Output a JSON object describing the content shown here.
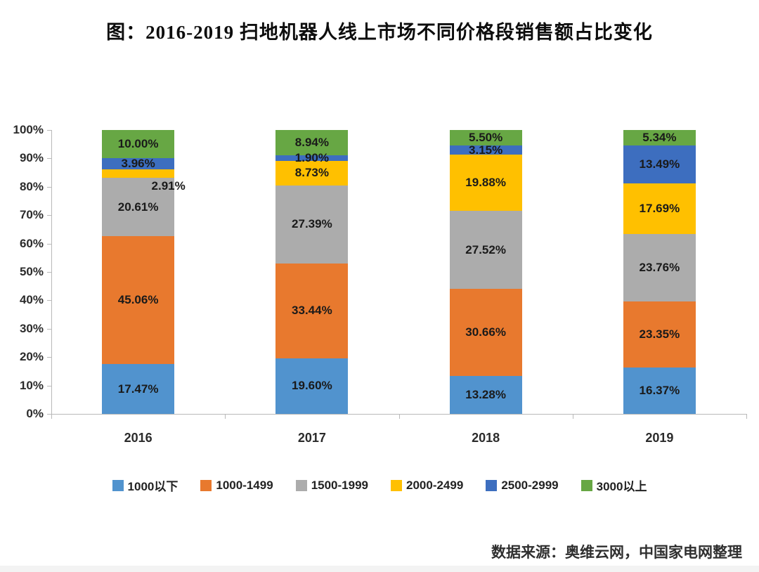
{
  "title": "图：2016-2019 扫地机器人线上市场不同价格段销售额占比变化",
  "source": "数据来源：奥维云网，中国家电网整理",
  "chart_data": {
    "type": "bar",
    "stacked": true,
    "title": "图：2016-2019 扫地机器人线上市场不同价格段销售额占比变化",
    "categories": [
      "2016",
      "2017",
      "2018",
      "2019"
    ],
    "series": [
      {
        "name": "1000以下",
        "color": "#5193CE",
        "values": [
          17.47,
          19.6,
          13.28,
          16.37
        ]
      },
      {
        "name": "1000-1499",
        "color": "#E8792E",
        "values": [
          45.06,
          33.44,
          30.66,
          23.35
        ]
      },
      {
        "name": "1500-1999",
        "color": "#ACACAC",
        "values": [
          20.61,
          27.39,
          27.52,
          23.76
        ]
      },
      {
        "name": "2000-2499",
        "color": "#FFC000",
        "values": [
          2.91,
          8.73,
          19.88,
          17.69
        ]
      },
      {
        "name": "2500-2999",
        "color": "#3D6EBF",
        "values": [
          3.96,
          1.9,
          3.15,
          13.49
        ]
      },
      {
        "name": "3000以上",
        "color": "#67A744",
        "values": [
          10.0,
          8.94,
          5.5,
          5.34
        ]
      }
    ],
    "xlabel": "",
    "ylabel": "",
    "ylim": [
      0,
      100
    ],
    "y_ticks": [
      "0%",
      "10%",
      "20%",
      "30%",
      "40%",
      "50%",
      "60%",
      "70%",
      "80%",
      "90%",
      "100%"
    ],
    "value_suffix": "%",
    "value_decimals": 2,
    "grid": false,
    "legend_position": "bottom",
    "label_adjustments": [
      {
        "category": "2016",
        "series": "2000-2499",
        "dx": 43,
        "dy": 18
      }
    ]
  }
}
